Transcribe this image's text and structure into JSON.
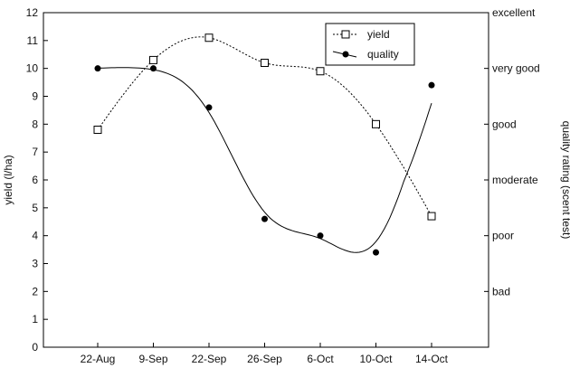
{
  "chart_data": {
    "type": "scatter",
    "title": "",
    "categories": [
      "22-Aug",
      "9-Sep",
      "22-Sep",
      "26-Sep",
      "6-Oct",
      "10-Oct",
      "14-Oct"
    ],
    "ylabel": "yield (l/ha)",
    "ylim": [
      0,
      12
    ],
    "yticks": [
      0,
      1,
      2,
      3,
      4,
      5,
      6,
      7,
      8,
      9,
      10,
      11,
      12
    ],
    "y2label": "quality rating (scent test)",
    "y2ticks": [
      {
        "label": "excellent",
        "value": 12
      },
      {
        "label": "very good",
        "value": 10
      },
      {
        "label": "good",
        "value": 8
      },
      {
        "label": "moderate",
        "value": 6
      },
      {
        "label": "poor",
        "value": 4
      },
      {
        "label": "bad",
        "value": 2
      }
    ],
    "grid": false,
    "legend_position": "top-right",
    "series": [
      {
        "name": "yield",
        "marker": "open-square",
        "line": "dotted",
        "color": "#000000",
        "values": [
          7.8,
          10.3,
          11.1,
          10.2,
          9.9,
          8.0,
          4.7
        ]
      },
      {
        "name": "quality",
        "marker": "filled-circle",
        "line": "solid",
        "color": "#000000",
        "values": [
          10.0,
          10.0,
          8.6,
          4.6,
          4.0,
          3.4,
          9.4
        ]
      }
    ]
  }
}
